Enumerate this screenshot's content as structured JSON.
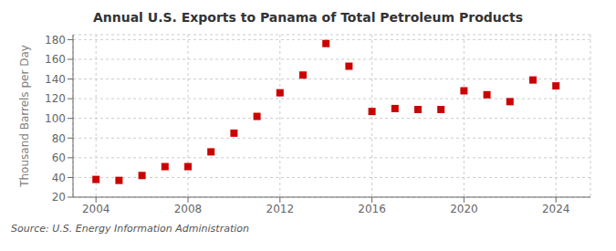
{
  "chart_data": {
    "type": "scatter",
    "title": "Annual U.S. Exports to Panama of Total Petroleum Products",
    "ylabel": "Thousand Barrels per Day",
    "annotations": [
      "Source: U.S. Energy Information Administration"
    ],
    "x": [
      2004,
      2005,
      2006,
      2007,
      2008,
      2009,
      2010,
      2011,
      2012,
      2013,
      2014,
      2015,
      2016,
      2017,
      2018,
      2019,
      2020,
      2021,
      2022,
      2023,
      2024
    ],
    "values": [
      38,
      37,
      42,
      51,
      51,
      66,
      85,
      102,
      126,
      144,
      176,
      153,
      107,
      110,
      109,
      109,
      128,
      124,
      117,
      139,
      133
    ],
    "color": "#cc0000",
    "marker": "square",
    "xlim": [
      2003.0,
      2025.5
    ],
    "ylim": [
      20,
      185
    ],
    "xticks": [
      2004,
      2008,
      2012,
      2016,
      2020,
      2024
    ],
    "yticks": [
      20,
      40,
      60,
      80,
      100,
      120,
      140,
      160,
      180
    ],
    "grid": true
  }
}
